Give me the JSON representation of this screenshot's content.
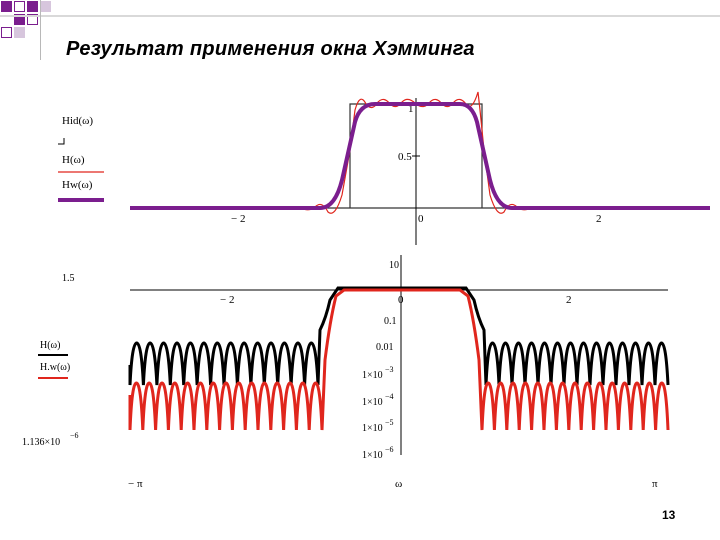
{
  "slide": {
    "title": "Результат применения окна Хэмминга",
    "page_number": "13"
  },
  "colors": {
    "ideal": "#333333",
    "rectangular_window": "#e0261d",
    "hamming_window": "#7b1e8e",
    "black_series": "#000000",
    "red_series": "#e0261d",
    "accent_squares": "#7b1e8e"
  },
  "chart_data": [
    {
      "type": "line",
      "legend": [
        "Hid(ω)",
        "H(ω)",
        "Hw(ω)"
      ],
      "xticks": [
        "− 2",
        "0",
        "2"
      ],
      "yticks": [
        "1",
        "0.5"
      ],
      "xlim": [
        -3.1416,
        3.1416
      ],
      "ylim": [
        -0.1,
        1.05
      ],
      "passband_edge": 0.75,
      "series": [
        {
          "name": "Hid(ω)",
          "x": [
            -3.14,
            -0.75,
            -0.75,
            0.75,
            0.75,
            3.14
          ],
          "values": [
            0,
            0,
            1,
            1,
            0,
            0
          ]
        },
        {
          "name": "H(ω)",
          "note_values": "ripple near the edges",
          "x": [
            -3.14,
            -1.0,
            -0.85,
            -0.6,
            0,
            0.6,
            0.85,
            1.0,
            3.14
          ],
          "values": [
            0,
            -0.03,
            0.02,
            1.05,
            1.0,
            1.05,
            0.02,
            -0.03,
            0
          ]
        },
        {
          "name": "Hw(ω)",
          "x": [
            -3.14,
            -0.95,
            -0.5,
            0,
            0.5,
            0.95,
            3.14
          ],
          "values": [
            0,
            0,
            1,
            1,
            1,
            0,
            0
          ]
        }
      ]
    },
    {
      "type": "line",
      "legend": [
        "H(ω)",
        "H.w(ω)"
      ],
      "yscale": "log",
      "yticks": [
        "10",
        "0.1",
        "0.01",
        "1×10",
        "1×10",
        "1×10",
        "1×10"
      ],
      "yticks_exponent": [
        "",
        "",
        "",
        "−3",
        "−4",
        "−5",
        "−6"
      ],
      "xticks_top": [
        "− 2",
        "0",
        "2"
      ],
      "xticks_bottom": [
        "− π",
        "ω",
        "π"
      ],
      "left_labels": {
        "ymax": "1.5",
        "ymin": "1.136×10",
        "ymin_exponent": "−6"
      },
      "ylim": [
        1.136e-06,
        1.5
      ],
      "xlim": [
        -3.1416,
        3.1416
      ]
    }
  ]
}
